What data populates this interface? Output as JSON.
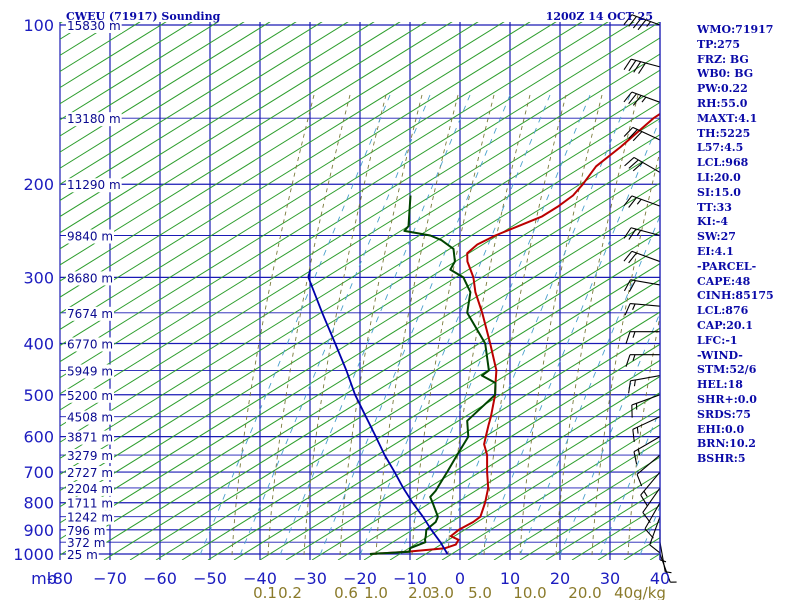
{
  "header": {
    "station": "CWEU (71917) Sounding",
    "time": "1200Z 14 OCT 25"
  },
  "indices": [
    "WMO:71917",
    "TP:275",
    "FRZ: BG",
    "WB0: BG",
    "PW:0.22",
    "RH:55.0",
    "MAXT:4.1",
    "TH:5225",
    "L57:4.5",
    "LCL:968",
    "LI:20.0",
    "SI:15.0",
    "TT:33",
    "KI:-4",
    "SW:27",
    "EI:4.1",
    "-PARCEL-",
    "CAPE:48",
    "CINH:85175",
    "LCL:876",
    "CAP:20.1",
    "LFC:-1",
    "-WIND-",
    "STM:52/6",
    "HEL:18",
    "SHR+:0.0",
    "SRDS:75",
    "EHI:0.0",
    "BRN:10.2",
    "BSHR:5"
  ],
  "chart_data": {
    "type": "skew-t",
    "pressure_axis": {
      "unit_label": "mb",
      "scale": "log",
      "range": [
        100,
        1000
      ],
      "ticks": [
        100,
        200,
        300,
        400,
        500,
        600,
        700,
        800,
        900,
        1000
      ],
      "tick_labels": [
        "100",
        "200",
        "300",
        "400",
        "500",
        "600",
        "700",
        "800",
        "900",
        "1000"
      ]
    },
    "height_labels": [
      {
        "p": 100,
        "label": "15830 m"
      },
      {
        "p": 150,
        "label": "13180 m"
      },
      {
        "p": 200,
        "label": "11290 m"
      },
      {
        "p": 250,
        "label": "9840 m"
      },
      {
        "p": 300,
        "label": "8680 m"
      },
      {
        "p": 350,
        "label": "7674 m"
      },
      {
        "p": 400,
        "label": "6770 m"
      },
      {
        "p": 450,
        "label": "5949 m"
      },
      {
        "p": 500,
        "label": "5200 m"
      },
      {
        "p": 550,
        "label": "4508 m"
      },
      {
        "p": 600,
        "label": "3871 m"
      },
      {
        "p": 650,
        "label": "3279 m"
      },
      {
        "p": 700,
        "label": "2727 m"
      },
      {
        "p": 750,
        "label": "2204 m"
      },
      {
        "p": 800,
        "label": "1711 m"
      },
      {
        "p": 850,
        "label": "1242 m"
      },
      {
        "p": 900,
        "label": "796 m"
      },
      {
        "p": 950,
        "label": "372 m"
      },
      {
        "p": 1000,
        "label": "25 m"
      }
    ],
    "temperature_axis": {
      "range": [
        -80,
        40
      ],
      "ticks": [
        -80,
        -70,
        -60,
        -50,
        -40,
        -30,
        -20,
        -10,
        0,
        10,
        20,
        30,
        40
      ],
      "tick_labels": [
        "-80",
        "−70",
        "−60",
        "−50",
        "−40",
        "−30",
        "−20",
        "−10",
        "0",
        "10",
        "20",
        "30",
        "40"
      ]
    },
    "mixing_ratio_labels": [
      {
        "w": 0.1,
        "label": "0.1"
      },
      {
        "w": 0.2,
        "label": "0.2"
      },
      {
        "w": 0.6,
        "label": "0.6"
      },
      {
        "w": 1.0,
        "label": "1.0"
      },
      {
        "w": 2.0,
        "label": "2.0"
      },
      {
        "w": 3.0,
        "label": "3.0"
      },
      {
        "w": 5.0,
        "label": "5.0"
      },
      {
        "w": 10.0,
        "label": "10.0"
      },
      {
        "w": 20.0,
        "label": "20.0"
      },
      {
        "w": 40.0,
        "label": "40g/kg"
      }
    ],
    "series": [
      {
        "role": "temperature",
        "color": "#bb0000",
        "points": [
          {
            "p": 1000,
            "t": -18.0
          },
          {
            "p": 990,
            "t": -11.0
          },
          {
            "p": 975,
            "t": -4.0
          },
          {
            "p": 960,
            "t": -2.5
          },
          {
            "p": 940,
            "t": -2.8
          },
          {
            "p": 925,
            "t": -5.0
          },
          {
            "p": 900,
            "t": -4.5
          },
          {
            "p": 870,
            "t": -3.0
          },
          {
            "p": 850,
            "t": -2.5
          },
          {
            "p": 800,
            "t": -4.0
          },
          {
            "p": 750,
            "t": -6.0
          },
          {
            "p": 700,
            "t": -9.0
          },
          {
            "p": 650,
            "t": -12.0
          },
          {
            "p": 620,
            "t": -14.5
          },
          {
            "p": 600,
            "t": -15.5
          },
          {
            "p": 570,
            "t": -17.0
          },
          {
            "p": 550,
            "t": -18.0
          },
          {
            "p": 500,
            "t": -21.0
          },
          {
            "p": 475,
            "t": -23.0
          },
          {
            "p": 450,
            "t": -25.0
          },
          {
            "p": 400,
            "t": -31.0
          },
          {
            "p": 350,
            "t": -38.0
          },
          {
            "p": 320,
            "t": -43.0
          },
          {
            "p": 300,
            "t": -46.0
          },
          {
            "p": 280,
            "t": -50.0
          },
          {
            "p": 270,
            "t": -51.5
          },
          {
            "p": 260,
            "t": -51.0
          },
          {
            "p": 250,
            "t": -49.0
          },
          {
            "p": 240,
            "t": -46.0
          },
          {
            "p": 230,
            "t": -43.0
          },
          {
            "p": 220,
            "t": -41.5
          },
          {
            "p": 210,
            "t": -40.5
          },
          {
            "p": 200,
            "t": -40.5
          },
          {
            "p": 185,
            "t": -41.0
          },
          {
            "p": 170,
            "t": -39.5
          },
          {
            "p": 150,
            "t": -38.0
          },
          {
            "p": 140,
            "t": -36.0
          },
          {
            "p": 130,
            "t": -34.0
          },
          {
            "p": 120,
            "t": -33.5
          },
          {
            "p": 110,
            "t": -33.0
          },
          {
            "p": 100,
            "t": -30.0
          }
        ]
      },
      {
        "role": "dewpoint",
        "color": "#004400",
        "points": [
          {
            "p": 1000,
            "t": -18.0
          },
          {
            "p": 990,
            "t": -10.5
          },
          {
            "p": 975,
            "t": -11.0
          },
          {
            "p": 950,
            "t": -9.0
          },
          {
            "p": 940,
            "t": -9.5
          },
          {
            "p": 925,
            "t": -10.0
          },
          {
            "p": 900,
            "t": -11.0
          },
          {
            "p": 870,
            "t": -10.5
          },
          {
            "p": 850,
            "t": -11.0
          },
          {
            "p": 800,
            "t": -14.5
          },
          {
            "p": 780,
            "t": -16.0
          },
          {
            "p": 760,
            "t": -16.0
          },
          {
            "p": 700,
            "t": -17.0
          },
          {
            "p": 650,
            "t": -18.0
          },
          {
            "p": 600,
            "t": -19.0
          },
          {
            "p": 560,
            "t": -22.0
          },
          {
            "p": 500,
            "t": -21.0
          },
          {
            "p": 475,
            "t": -23.0
          },
          {
            "p": 460,
            "t": -27.0
          },
          {
            "p": 450,
            "t": -26.5
          },
          {
            "p": 400,
            "t": -32.0
          },
          {
            "p": 350,
            "t": -41.0
          },
          {
            "p": 320,
            "t": -44.0
          },
          {
            "p": 300,
            "t": -48.0
          },
          {
            "p": 290,
            "t": -52.0
          },
          {
            "p": 280,
            "t": -52.5
          },
          {
            "p": 265,
            "t": -55.0
          },
          {
            "p": 255,
            "t": -59.0
          },
          {
            "p": 250,
            "t": -62.0
          },
          {
            "p": 245,
            "t": -68.0
          },
          {
            "p": 240,
            "t": -68.0
          },
          {
            "p": 210,
            "t": -73.0
          }
        ]
      },
      {
        "role": "parcel",
        "color": "#0000aa",
        "points": [
          {
            "p": 1000,
            "t": -2.5
          },
          {
            "p": 950,
            "t": -6.0
          },
          {
            "p": 900,
            "t": -10.0
          },
          {
            "p": 850,
            "t": -14.0
          },
          {
            "p": 800,
            "t": -18.5
          },
          {
            "p": 750,
            "t": -23.0
          },
          {
            "p": 700,
            "t": -27.5
          },
          {
            "p": 650,
            "t": -32.5
          },
          {
            "p": 600,
            "t": -37.5
          },
          {
            "p": 550,
            "t": -43.0
          },
          {
            "p": 500,
            "t": -49.0
          },
          {
            "p": 450,
            "t": -55.0
          },
          {
            "p": 400,
            "t": -62.0
          },
          {
            "p": 350,
            "t": -70.0
          },
          {
            "p": 300,
            "t": -79.0
          },
          {
            "p": 290,
            "t": -80.0
          }
        ]
      }
    ],
    "wind_barbs": [
      {
        "p": 100,
        "dir": 290,
        "spd": 45
      },
      {
        "p": 120,
        "dir": 285,
        "spd": 40
      },
      {
        "p": 140,
        "dir": 290,
        "spd": 35
      },
      {
        "p": 165,
        "dir": 295,
        "spd": 30
      },
      {
        "p": 190,
        "dir": 300,
        "spd": 30
      },
      {
        "p": 220,
        "dir": 290,
        "spd": 25
      },
      {
        "p": 250,
        "dir": 285,
        "spd": 25
      },
      {
        "p": 280,
        "dir": 290,
        "spd": 20
      },
      {
        "p": 310,
        "dir": 280,
        "spd": 20
      },
      {
        "p": 340,
        "dir": 275,
        "spd": 15
      },
      {
        "p": 380,
        "dir": 270,
        "spd": 15
      },
      {
        "p": 420,
        "dir": 270,
        "spd": 15
      },
      {
        "p": 460,
        "dir": 260,
        "spd": 15
      },
      {
        "p": 500,
        "dir": 250,
        "spd": 15
      },
      {
        "p": 550,
        "dir": 245,
        "spd": 15
      },
      {
        "p": 600,
        "dir": 240,
        "spd": 15
      },
      {
        "p": 650,
        "dir": 230,
        "spd": 10
      },
      {
        "p": 700,
        "dir": 220,
        "spd": 15
      },
      {
        "p": 750,
        "dir": 215,
        "spd": 10
      },
      {
        "p": 800,
        "dir": 210,
        "spd": 10
      },
      {
        "p": 850,
        "dir": 200,
        "spd": 10
      },
      {
        "p": 900,
        "dir": 180,
        "spd": 5
      },
      {
        "p": 950,
        "dir": 170,
        "spd": 5
      },
      {
        "p": 1000,
        "dir": 160,
        "spd": 5
      }
    ],
    "colors": {
      "grid": "#1a1ab5",
      "dry_adiabat": "#2e9e2e",
      "moist_adiabat": "#7a7a3a",
      "mixing_ratio": "#4aa0cc"
    }
  }
}
